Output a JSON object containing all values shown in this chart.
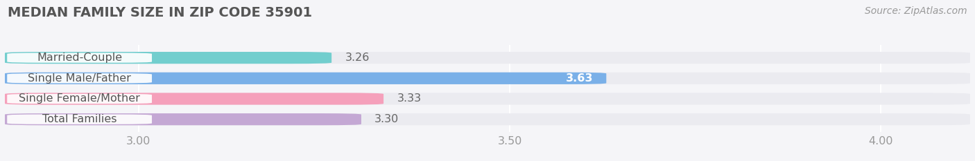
{
  "title": "MEDIAN FAMILY SIZE IN ZIP CODE 35901",
  "source": "Source: ZipAtlas.com",
  "categories": [
    "Married-Couple",
    "Single Male/Father",
    "Single Female/Mother",
    "Total Families"
  ],
  "values": [
    3.26,
    3.63,
    3.33,
    3.3
  ],
  "bar_colors": [
    "#72cece",
    "#7ab0e8",
    "#f5a0bb",
    "#c4a8d4"
  ],
  "value_inside": [
    false,
    true,
    false,
    false
  ],
  "xlim": [
    2.82,
    4.12
  ],
  "xticks": [
    3.0,
    3.5,
    4.0
  ],
  "xtick_labels": [
    "3.00",
    "3.50",
    "4.00"
  ],
  "background_color": "#f5f5f8",
  "bar_bg_color": "#ebebf0",
  "title_fontsize": 14,
  "label_fontsize": 11.5,
  "value_fontsize": 11.5,
  "source_fontsize": 10,
  "bar_height": 0.58,
  "figsize": [
    14.06,
    2.33
  ],
  "dpi": 100
}
